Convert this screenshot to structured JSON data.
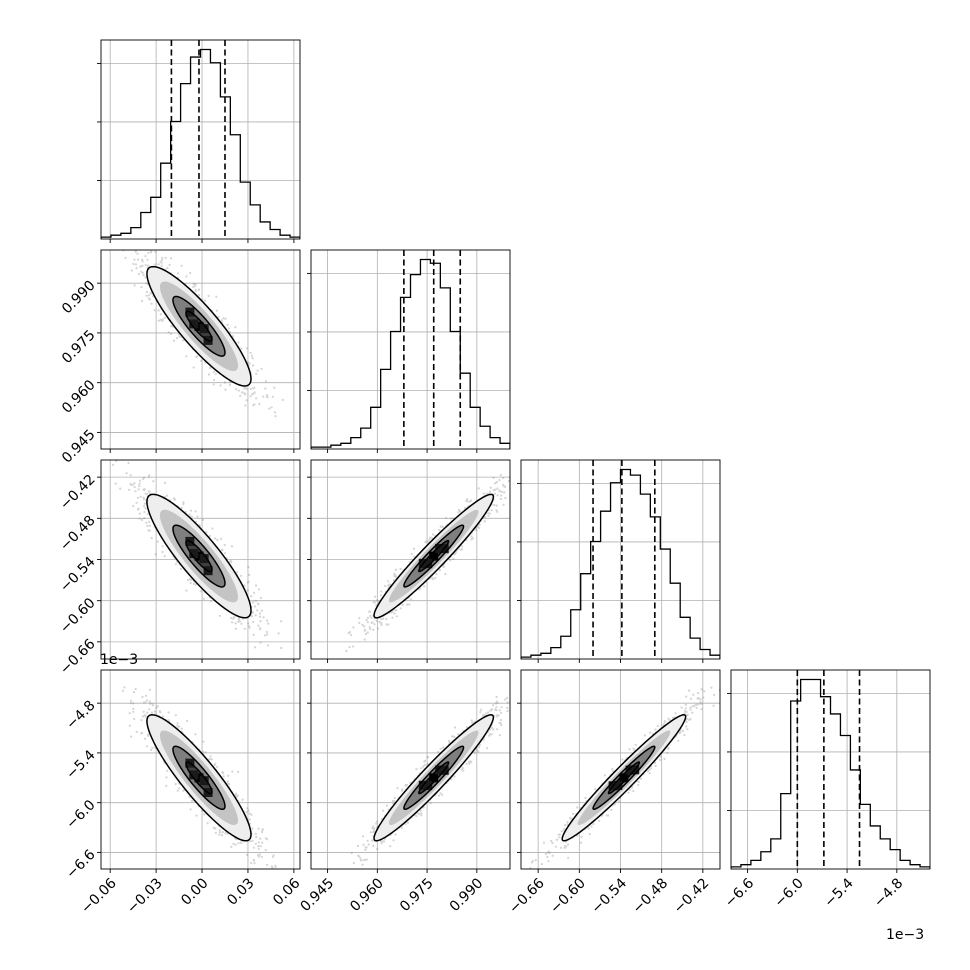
{
  "chart_data": {
    "type": "corner",
    "ticks": {
      "p0": [
        "−0.06",
        "−0.03",
        "0.00",
        "0.03",
        "0.06"
      ],
      "p1": [
        "0.945",
        "0.960",
        "0.975",
        "0.990"
      ],
      "p2": [
        "−0.66",
        "−0.60",
        "−0.54",
        "−0.48",
        "−0.42"
      ],
      "p3": [
        "−6.6",
        "−6.0",
        "−5.4",
        "−4.8"
      ]
    },
    "offset_text": "1e−3",
    "parameters": [
      {
        "tick_values": [
          -0.06,
          -0.03,
          0.0,
          0.03,
          0.06
        ],
        "range": [
          -0.066,
          0.064
        ],
        "quantiles": [
          -0.02,
          -0.002,
          0.015
        ],
        "mean": -0.002,
        "sd": 0.017
      },
      {
        "tick_values": [
          0.945,
          0.96,
          0.975,
          0.99
        ],
        "range": [
          0.94,
          1.0
        ],
        "quantiles": [
          0.968,
          0.977,
          0.985
        ],
        "mean": 0.977,
        "sd": 0.009
      },
      {
        "tick_values": [
          -0.66,
          -0.6,
          -0.54,
          -0.48,
          -0.42
        ],
        "range": [
          -0.685,
          -0.395
        ],
        "quantiles": [
          -0.58,
          -0.538,
          -0.49
        ],
        "mean": -0.535,
        "sd": 0.045
      },
      {
        "tick_values": [
          -6.6,
          -6.0,
          -5.4,
          -4.8
        ],
        "range": [
          -6.8,
          -4.4
        ],
        "quantiles": [
          -6.0,
          -5.68,
          -5.25
        ],
        "mean": -5.7,
        "sd": 0.38
      }
    ],
    "correlations": [
      [
        1,
        -0.88,
        -0.88,
        -0.9
      ],
      [
        -0.88,
        1,
        0.96,
        0.96
      ],
      [
        -0.88,
        0.96,
        1,
        0.97
      ],
      [
        -0.9,
        0.96,
        0.97,
        1
      ]
    ],
    "histograms": [
      [
        1,
        2,
        3,
        6,
        14,
        22,
        40,
        62,
        82,
        96,
        100,
        93,
        75,
        55,
        30,
        18,
        9,
        5,
        2,
        1
      ],
      [
        1,
        1,
        2,
        3,
        6,
        11,
        22,
        42,
        62,
        80,
        92,
        100,
        98,
        85,
        62,
        40,
        22,
        12,
        6,
        3
      ],
      [
        1,
        2,
        3,
        6,
        12,
        26,
        45,
        62,
        78,
        93,
        100,
        97,
        87,
        75,
        58,
        40,
        22,
        11,
        5,
        2
      ],
      [
        1,
        2,
        4,
        8,
        14,
        35,
        78,
        88,
        88,
        80,
        72,
        62,
        46,
        30,
        20,
        14,
        9,
        4,
        2,
        1
      ]
    ],
    "grid": true,
    "quantile_style": "dashed"
  }
}
